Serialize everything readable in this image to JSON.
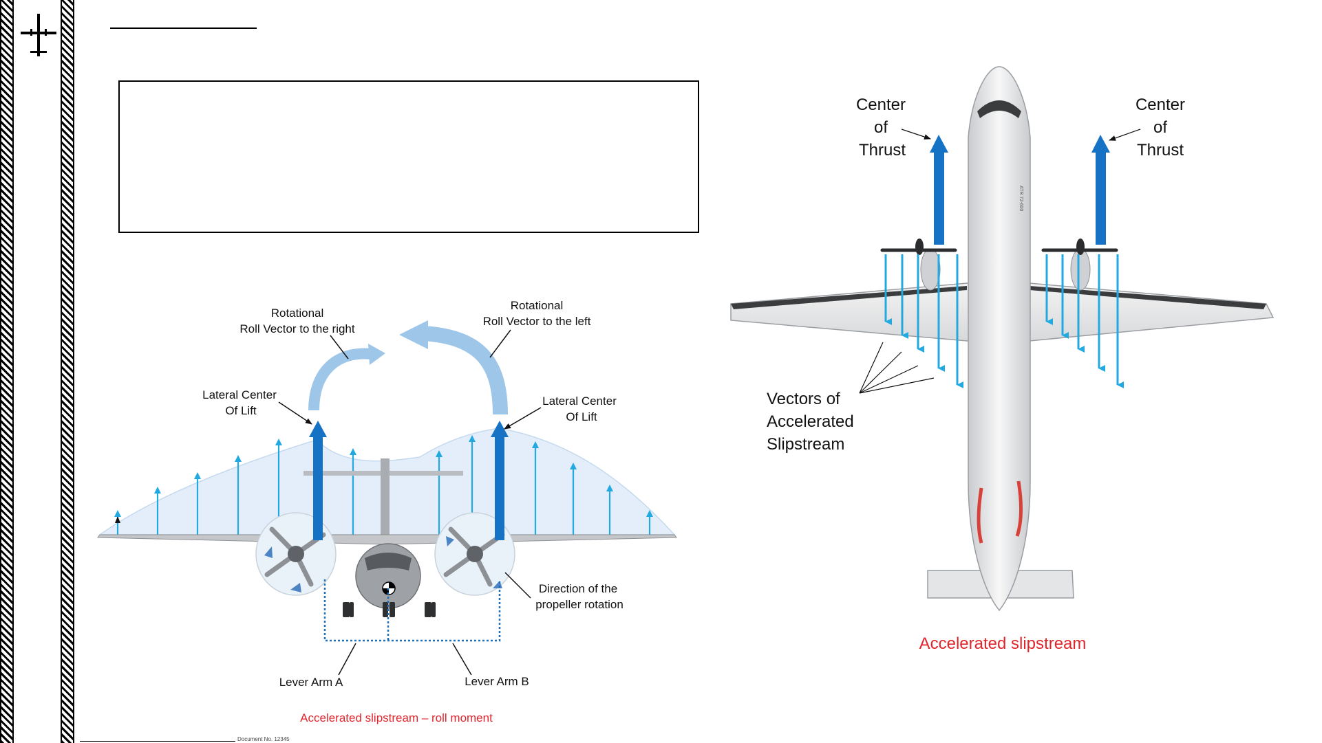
{
  "slide": {
    "title": "",
    "text_box": "",
    "footer": "Document No. 12345"
  },
  "left_diagram": {
    "roll_right": [
      "Rotational",
      "Roll Vector to the right"
    ],
    "roll_left": [
      "Rotational",
      "Roll Vector to the left"
    ],
    "lift_left": [
      "Lateral Center",
      "Of  Lift"
    ],
    "lift_right": [
      "Lateral Center",
      "Of  Lift"
    ],
    "prop_rotation": [
      "Direction of the",
      "propeller rotation"
    ],
    "lever_a": "Lever Arm A",
    "lever_b": "Lever Arm B",
    "caption": "Accelerated slipstream – roll moment"
  },
  "right_diagram": {
    "thrust_left": [
      "Center",
      "of",
      "Thrust"
    ],
    "thrust_right": [
      "Center",
      "of",
      "Thrust"
    ],
    "vectors": [
      "Vectors of",
      "Accelerated",
      "Slipstream"
    ],
    "caption": "Accelerated slipstream",
    "fuselage_text": "ATR 72-600"
  },
  "colors": {
    "thrust_blue": "#1572c4",
    "slipstream_cyan": "#22a9e0",
    "roll_arrow": "#9dc6e8",
    "lift_area": "#e3eefa",
    "caption_red": "#e0262c"
  }
}
